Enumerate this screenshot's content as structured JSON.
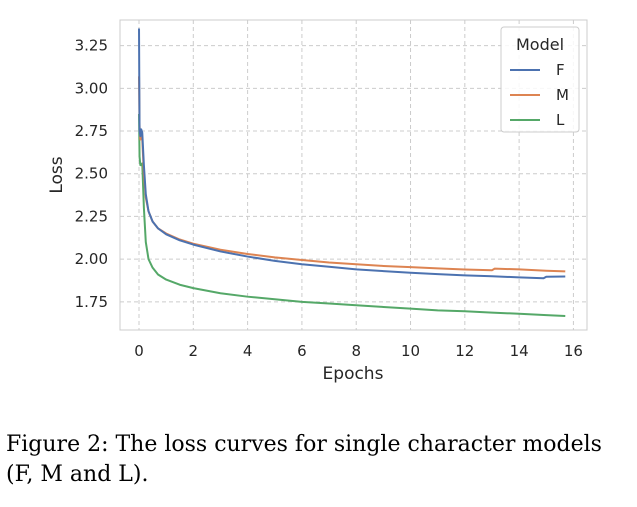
{
  "caption": "Figure 2: The loss curves for single character models (F, M and L).",
  "chart_data": {
    "type": "line",
    "xlabel": "Epochs",
    "ylabel": "Loss",
    "xlim": [
      -0.7,
      16.5
    ],
    "ylim": [
      1.585,
      3.4
    ],
    "xticks": [
      0,
      2,
      4,
      6,
      8,
      10,
      12,
      14,
      16
    ],
    "yticks": [
      1.75,
      2.0,
      2.25,
      2.5,
      2.75,
      3.0,
      3.25
    ],
    "ytick_labels": [
      "1.75",
      "2.00",
      "2.25",
      "2.50",
      "2.75",
      "3.00",
      "3.25"
    ],
    "grid": true,
    "legend": {
      "title": "Model",
      "placement": "top-right"
    },
    "series": [
      {
        "name": "F",
        "color": "#4c72b0",
        "x": [
          0,
          0.02,
          0.05,
          0.08,
          0.12,
          0.18,
          0.25,
          0.35,
          0.5,
          0.7,
          1.0,
          1.5,
          2,
          3,
          4,
          5,
          6,
          7,
          8,
          9,
          10,
          11,
          12,
          13,
          14,
          14.9,
          15.0,
          15.7
        ],
        "y": [
          3.35,
          2.75,
          2.72,
          2.76,
          2.74,
          2.55,
          2.38,
          2.28,
          2.22,
          2.18,
          2.145,
          2.11,
          2.085,
          2.045,
          2.015,
          1.99,
          1.97,
          1.955,
          1.94,
          1.93,
          1.92,
          1.912,
          1.905,
          1.9,
          1.893,
          1.888,
          1.897,
          1.898
        ]
      },
      {
        "name": "M",
        "color": "#dd8452",
        "x": [
          0,
          0.02,
          0.05,
          0.08,
          0.12,
          0.18,
          0.25,
          0.35,
          0.5,
          0.7,
          1.0,
          1.5,
          2,
          3,
          4,
          5,
          6,
          7,
          8,
          9,
          10,
          11,
          12,
          13.0,
          13.1,
          14,
          15,
          15.7
        ],
        "y": [
          3.07,
          2.78,
          2.7,
          2.73,
          2.7,
          2.5,
          2.36,
          2.28,
          2.22,
          2.18,
          2.15,
          2.115,
          2.09,
          2.055,
          2.03,
          2.01,
          1.995,
          1.98,
          1.97,
          1.96,
          1.953,
          1.946,
          1.939,
          1.935,
          1.944,
          1.94,
          1.932,
          1.928
        ]
      },
      {
        "name": "L",
        "color": "#55a868",
        "x": [
          0,
          0.02,
          0.05,
          0.08,
          0.12,
          0.18,
          0.25,
          0.35,
          0.5,
          0.7,
          1.0,
          1.5,
          2,
          3,
          4,
          5,
          6,
          7,
          8,
          9,
          10,
          11,
          12,
          13,
          14,
          15,
          15.7
        ],
        "y": [
          2.85,
          2.6,
          2.55,
          2.55,
          2.56,
          2.3,
          2.1,
          2.0,
          1.95,
          1.91,
          1.88,
          1.85,
          1.83,
          1.8,
          1.78,
          1.765,
          1.75,
          1.74,
          1.73,
          1.72,
          1.71,
          1.7,
          1.695,
          1.687,
          1.68,
          1.672,
          1.667
        ]
      }
    ]
  }
}
